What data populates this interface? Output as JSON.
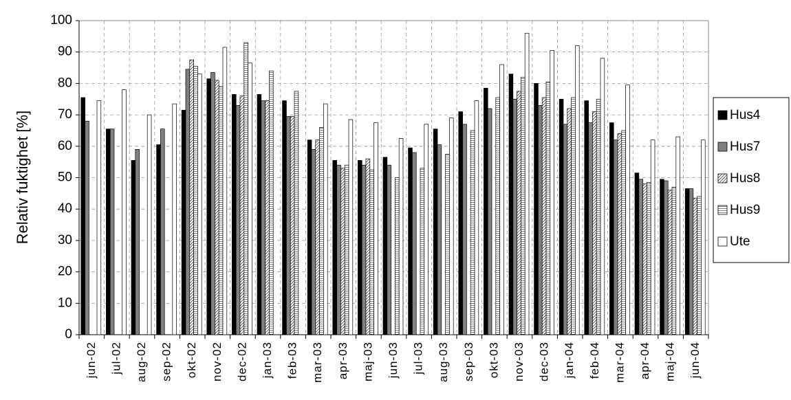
{
  "chart_data": {
    "type": "bar",
    "y_label": "Relativ fuktighet [%]",
    "categories": [
      "jun-02",
      "jul-02",
      "aug-02",
      "sep-02",
      "okt-02",
      "nov-02",
      "dec-02",
      "jan-03",
      "feb-03",
      "mar-03",
      "apr-03",
      "maj-03",
      "jun-03",
      "jul-03",
      "aug-03",
      "sep-03",
      "okt-03",
      "nov-03",
      "dec-03",
      "jan-04",
      "feb-04",
      "mar-04",
      "apr-04",
      "maj-04",
      "jun-04"
    ],
    "series": [
      {
        "name": "Hus4",
        "color": "#000000",
        "pattern": "solid",
        "values": [
          75.5,
          65.5,
          55.5,
          60.5,
          71.5,
          81.5,
          76.5,
          76.5,
          74.5,
          62,
          55.5,
          55.5,
          56.5,
          59.5,
          65.5,
          71,
          78.5,
          83,
          80,
          75,
          74.5,
          67.5,
          51.5,
          49.5,
          46.5
        ]
      },
      {
        "name": "Hus7",
        "color": "#808080",
        "pattern": "solid",
        "values": [
          68,
          65.5,
          59,
          65.5,
          84.5,
          83.5,
          73,
          74.5,
          69.5,
          59,
          54,
          54,
          54,
          58,
          60.5,
          67,
          72,
          75,
          73,
          67,
          67.5,
          62,
          49.5,
          49,
          46.5
        ]
      },
      {
        "name": "Hus8",
        "color": "#000000",
        "pattern": "diagonal",
        "values": [
          null,
          null,
          null,
          null,
          87.5,
          81,
          76,
          74.5,
          69.5,
          62,
          53,
          56,
          null,
          null,
          null,
          null,
          null,
          77.5,
          75.5,
          72,
          71,
          64,
          48,
          46,
          43.5
        ]
      },
      {
        "name": "Hus9",
        "color": "#000000",
        "pattern": "grid",
        "values": [
          null,
          null,
          null,
          null,
          85.5,
          79,
          93,
          84,
          77.5,
          66,
          54,
          52.5,
          50,
          53,
          57.5,
          65,
          75.5,
          82,
          80.5,
          75.5,
          75,
          65,
          48.5,
          47,
          44
        ]
      },
      {
        "name": "Ute",
        "color": "#ffffff",
        "pattern": "solid",
        "values": [
          74.5,
          78,
          70,
          73.5,
          83,
          91.5,
          86.5,
          null,
          null,
          73.5,
          68.5,
          67.5,
          62.5,
          67,
          69,
          74.5,
          86,
          96,
          90.5,
          92,
          88,
          79.5,
          62,
          63,
          62
        ]
      }
    ],
    "ylim": [
      0,
      100
    ],
    "yticks": [
      0,
      10,
      20,
      30,
      40,
      50,
      60,
      70,
      80,
      90,
      100
    ],
    "grid": true,
    "legend": "right"
  }
}
